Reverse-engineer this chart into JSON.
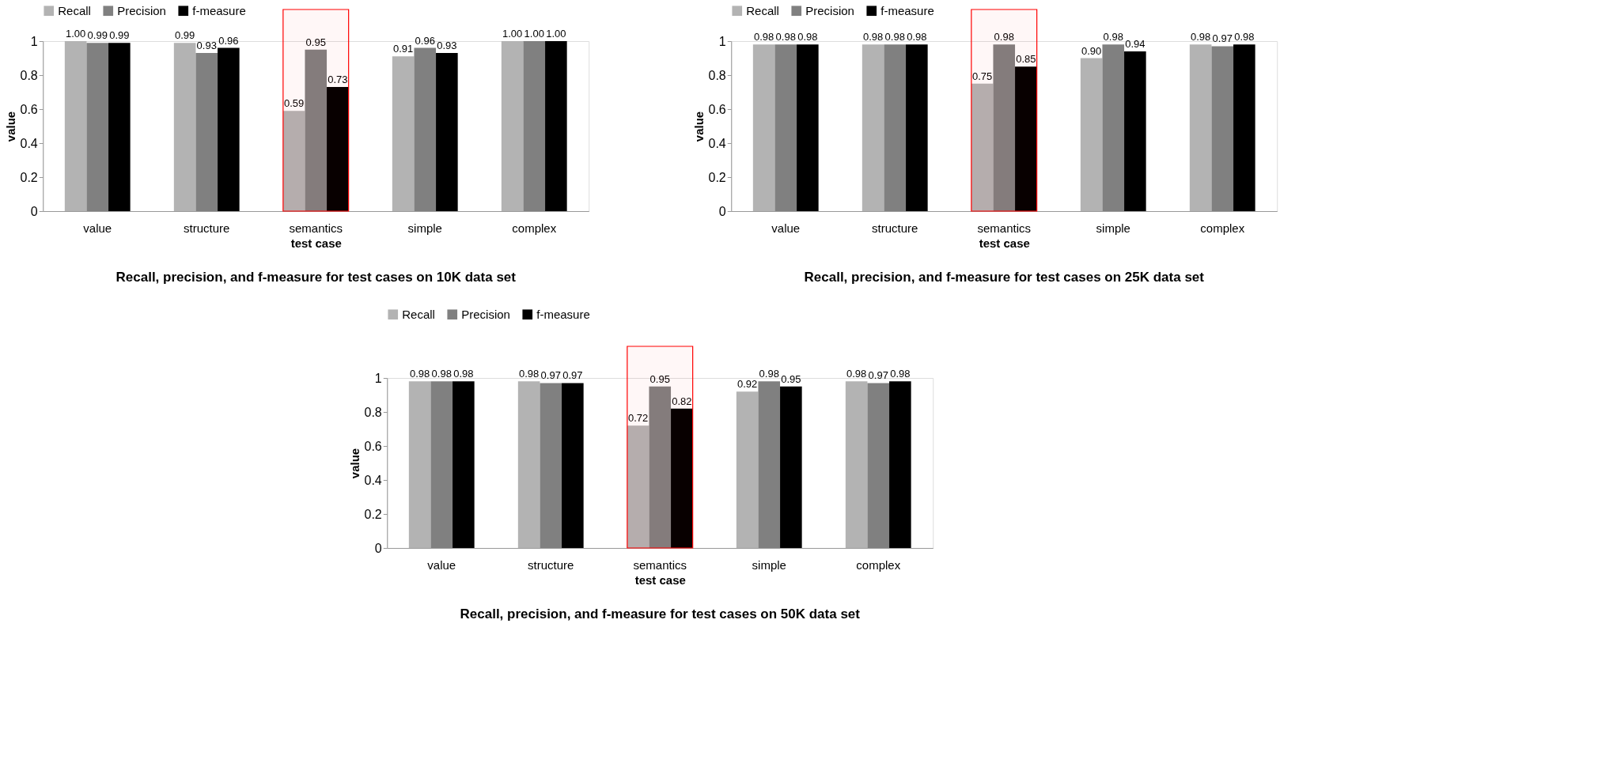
{
  "chart_data": [
    {
      "type": "bar",
      "title": "Recall, precision, and f-measure for test cases on 10K data set",
      "xlabel": "test case",
      "ylabel": "value",
      "categories": [
        "value",
        "structure",
        "semantics",
        "simple",
        "complex"
      ],
      "series": [
        {
          "name": "Recall",
          "color": "#b3b3b3",
          "values": [
            1.0,
            0.99,
            0.59,
            0.91,
            1.0
          ],
          "value_labels": [
            "1.00",
            "0.99",
            "0.59",
            "0.91",
            "1.00"
          ]
        },
        {
          "name": "Precision",
          "color": "#808080",
          "values": [
            0.99,
            0.93,
            0.95,
            0.96,
            1.0
          ],
          "value_labels": [
            "0.99",
            "0.93",
            "0.95",
            "0.96",
            "1.00"
          ]
        },
        {
          "name": "f-measure",
          "color": "#000000",
          "values": [
            0.99,
            0.96,
            0.73,
            0.93,
            1.0
          ],
          "value_labels": [
            "0.99",
            "0.96",
            "0.73",
            "0.93",
            "1.00"
          ]
        }
      ],
      "ylim": [
        0,
        1
      ],
      "yticks": [
        0,
        0.2,
        0.4,
        0.6,
        0.8,
        1
      ],
      "legend": "top",
      "bands": [
        {
          "axis": "x",
          "from": "semantics",
          "to": "semantics",
          "color": "#ff0000"
        }
      ]
    },
    {
      "type": "bar",
      "title": "Recall, precision, and f-measure for test cases on 25K data set",
      "xlabel": "test case",
      "ylabel": "value",
      "categories": [
        "value",
        "structure",
        "semantics",
        "simple",
        "complex"
      ],
      "series": [
        {
          "name": "Recall",
          "color": "#b3b3b3",
          "values": [
            0.98,
            0.98,
            0.75,
            0.9,
            0.98
          ],
          "value_labels": [
            "0.98",
            "0.98",
            "0.75",
            "0.90",
            "0.98"
          ]
        },
        {
          "name": "Precision",
          "color": "#808080",
          "values": [
            0.98,
            0.98,
            0.98,
            0.98,
            0.97
          ],
          "value_labels": [
            "0.98",
            "0.98",
            "0.98",
            "0.98",
            "0.97"
          ]
        },
        {
          "name": "f-measure",
          "color": "#000000",
          "values": [
            0.98,
            0.98,
            0.85,
            0.94,
            0.98
          ],
          "value_labels": [
            "0.98",
            "0.98",
            "0.85",
            "0.94",
            "0.98"
          ]
        }
      ],
      "ylim": [
        0,
        1
      ],
      "yticks": [
        0,
        0.2,
        0.4,
        0.6,
        0.8,
        1
      ],
      "legend": "top",
      "bands": [
        {
          "axis": "x",
          "from": "semantics",
          "to": "semantics",
          "color": "#ff0000"
        }
      ]
    },
    {
      "type": "bar",
      "title": "Recall, precision, and f-measure for test cases on 50K data set",
      "xlabel": "test case",
      "ylabel": "value",
      "categories": [
        "value",
        "structure",
        "semantics",
        "simple",
        "complex"
      ],
      "series": [
        {
          "name": "Recall",
          "color": "#b3b3b3",
          "values": [
            0.98,
            0.98,
            0.72,
            0.92,
            0.98
          ],
          "value_labels": [
            "0.98",
            "0.98",
            "0.72",
            "0.92",
            "0.98"
          ]
        },
        {
          "name": "Precision",
          "color": "#808080",
          "values": [
            0.98,
            0.97,
            0.95,
            0.98,
            0.97
          ],
          "value_labels": [
            "0.98",
            "0.97",
            "0.95",
            "0.98",
            "0.97"
          ]
        },
        {
          "name": "f-measure",
          "color": "#000000",
          "values": [
            0.98,
            0.97,
            0.82,
            0.95,
            0.98
          ],
          "value_labels": [
            "0.98",
            "0.97",
            "0.82",
            "0.95",
            "0.98"
          ]
        }
      ],
      "ylim": [
        0,
        1
      ],
      "yticks": [
        0,
        0.2,
        0.4,
        0.6,
        0.8,
        1
      ],
      "legend": "top",
      "bands": [
        {
          "axis": "x",
          "from": "semantics",
          "to": "semantics",
          "color": "#ff0000"
        }
      ]
    }
  ]
}
